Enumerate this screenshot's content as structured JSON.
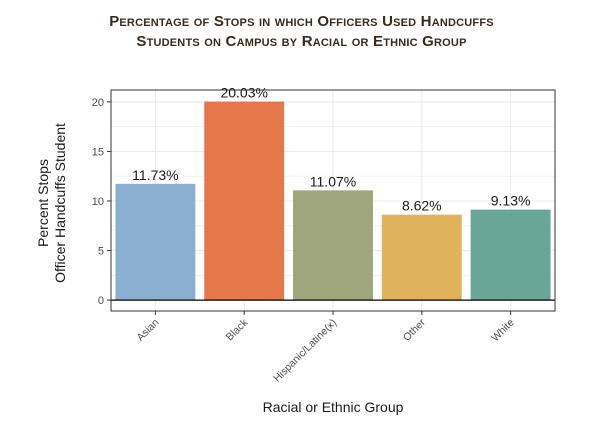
{
  "chart_data": {
    "type": "bar",
    "title_lines": [
      "Percentage of Stops in which Officers Used Handcuffs",
      "Students on Campus by Racial or Ethnic Group"
    ],
    "categories": [
      "Asian",
      "Black",
      "Hispanic/Latine(x)",
      "Other",
      "White"
    ],
    "values": [
      11.73,
      20.03,
      11.07,
      8.62,
      9.13
    ],
    "data_labels": [
      "11.73%",
      "20.03%",
      "11.07%",
      "8.62%",
      "9.13%"
    ],
    "colors": [
      "#8aafd0",
      "#e5774a",
      "#9fa67c",
      "#e0b25c",
      "#6aa697"
    ],
    "xlabel": "Racial or Ethnic Group",
    "ylabel_lines": [
      "Percent Stops",
      "Officer Handcuffs Student"
    ],
    "ylim": [
      -1.1,
      21.2
    ],
    "yticks": [
      0,
      5,
      10,
      15,
      20
    ],
    "grid": true,
    "background": "#ffffff",
    "grid_color": "#ebebeb",
    "panel_border_color": "#333333"
  }
}
